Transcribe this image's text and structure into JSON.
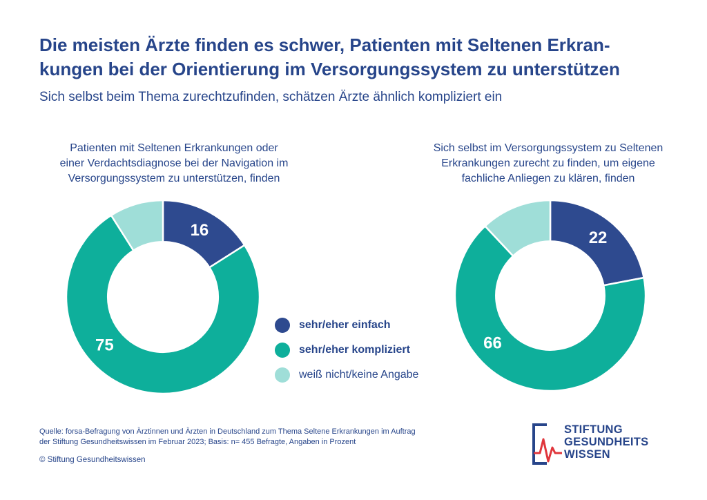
{
  "title": "Die meisten Ärzte finden es schwer, Patienten mit Seltenen Erkran-kungen bei der Orientierung im Versorgungssystem zu unterstützen",
  "title_line1": "Die meisten Ärzte finden es schwer, Patienten mit Seltenen Erkran-",
  "title_line2": "kungen bei der Orientierung im Versorgungssystem zu unterstützen",
  "subtitle": "Sich selbst beim Thema zurechtzufinden, schätzen Ärzte ähnlich kompliziert ein",
  "colors": {
    "easy": "#2e4a8f",
    "complicated": "#0eaf9b",
    "unknown": "#9fded8",
    "text": "#27458a",
    "logo_red": "#e0363c"
  },
  "chart_data": [
    {
      "type": "pie",
      "variant": "donut",
      "title_lines": [
        "Patienten mit Seltenen Erkrankungen oder",
        "einer Verdachtsdiagnose bei der Navigation im",
        "Versorgungssystem zu unterstützen, finden"
      ],
      "categories": [
        "sehr/eher einfach",
        "sehr/eher kompliziert",
        "weiß nicht/keine Angabe"
      ],
      "values": [
        16,
        75,
        9
      ],
      "data_labels": [
        "16",
        "75",
        ""
      ]
    },
    {
      "type": "pie",
      "variant": "donut",
      "title_lines": [
        "Sich selbst im Versorgungssystem zu Seltenen",
        "Erkrankungen zurecht zu finden, um eigene",
        "fachliche Anliegen zu klären, finden"
      ],
      "categories": [
        "sehr/eher einfach",
        "sehr/eher kompliziert",
        "weiß nicht/keine Angabe"
      ],
      "values": [
        22,
        66,
        12
      ],
      "data_labels": [
        "22",
        "66",
        ""
      ]
    }
  ],
  "legend": [
    {
      "label": "sehr/eher einfach",
      "color": "#2e4a8f",
      "bold": true
    },
    {
      "label": "sehr/eher kompliziert",
      "color": "#0eaf9b",
      "bold": true
    },
    {
      "label": "weiß nicht/keine Angabe",
      "color": "#9fded8",
      "bold": false
    }
  ],
  "source_line1": "Quelle: forsa-Befragung von Ärztinnen und Ärzten in Deutschland zum Thema Seltene Erkrankungen im Auftrag",
  "source_line2": "der Stiftung Gesundheitswissen im Februar 2023; Basis: n= 455 Befragte, Angaben in Prozent",
  "copyright": "© Stiftung Gesundheitswissen",
  "logo": {
    "line1": "STIFTUNG",
    "line2": "GESUNDHEITS",
    "line3": "WISSEN"
  }
}
